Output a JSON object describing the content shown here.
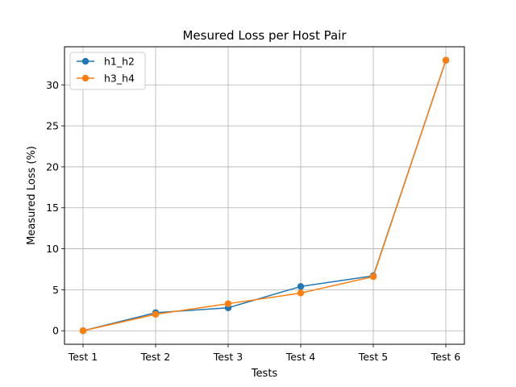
{
  "chart_data": {
    "type": "line",
    "title": "Mesured Loss per Host Pair",
    "xlabel": "Tests",
    "ylabel": "Measured Loss (%)",
    "categories": [
      "Test 1",
      "Test 2",
      "Test 3",
      "Test 4",
      "Test 5",
      "Test 6"
    ],
    "ylim": [
      -1.65,
      34.65
    ],
    "yticks": [
      0,
      5,
      10,
      15,
      20,
      25,
      30
    ],
    "grid": true,
    "legend_position": "top-left",
    "series": [
      {
        "name": "h1_h2",
        "color": "#1f77b4",
        "values": [
          0,
          2.2,
          2.8,
          5.4,
          6.7,
          33.0
        ]
      },
      {
        "name": "h3_h4",
        "color": "#ff7f0e",
        "values": [
          0,
          2.0,
          3.3,
          4.6,
          6.6,
          33.0
        ]
      }
    ]
  }
}
